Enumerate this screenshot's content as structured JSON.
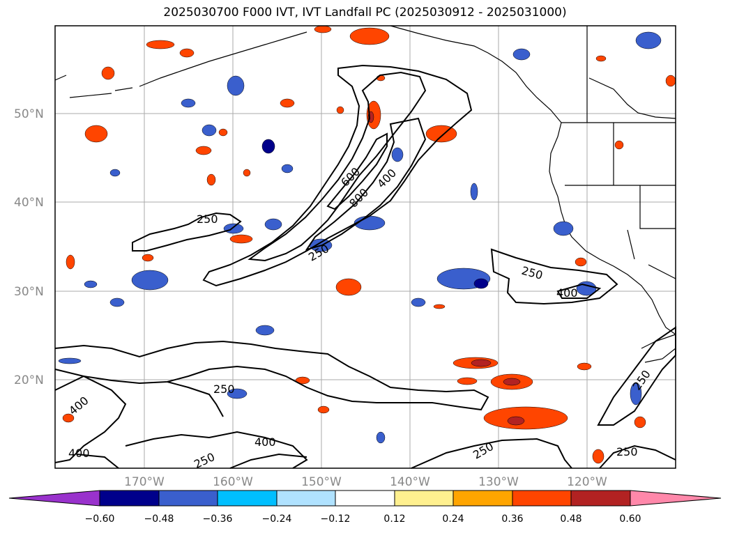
{
  "title": "2025030700 F000 IVT, IVT Landfall PC (2025030912 - 2025031000)",
  "lat_labels": [
    "50°N",
    "40°N",
    "30°N",
    "20°N"
  ],
  "lon_labels": [
    "170°W",
    "160°W",
    "150°W",
    "140°W",
    "130°W",
    "120°W"
  ],
  "colorbar": {
    "ticks": [
      "−0.60",
      "−0.48",
      "−0.36",
      "−0.24",
      "−0.12",
      "0.12",
      "0.24",
      "0.36",
      "0.48",
      "0.60"
    ],
    "colors": [
      "#9932cc",
      "#00008b",
      "#3a5fcd",
      "#00bfff",
      "#b0e2ff",
      "#ffffff",
      "#fff08f",
      "#ffa500",
      "#ff4500",
      "#b22222",
      "#ff88aa"
    ]
  },
  "contour_labels": [
    "250",
    "600",
    "800",
    "400",
    "250",
    "250",
    "400",
    "250",
    "400",
    "400",
    "250",
    "400",
    "250",
    "250",
    "250"
  ],
  "colors": {
    "contour": "#000000",
    "grid": "#aaaaaa",
    "coast": "#000000"
  }
}
